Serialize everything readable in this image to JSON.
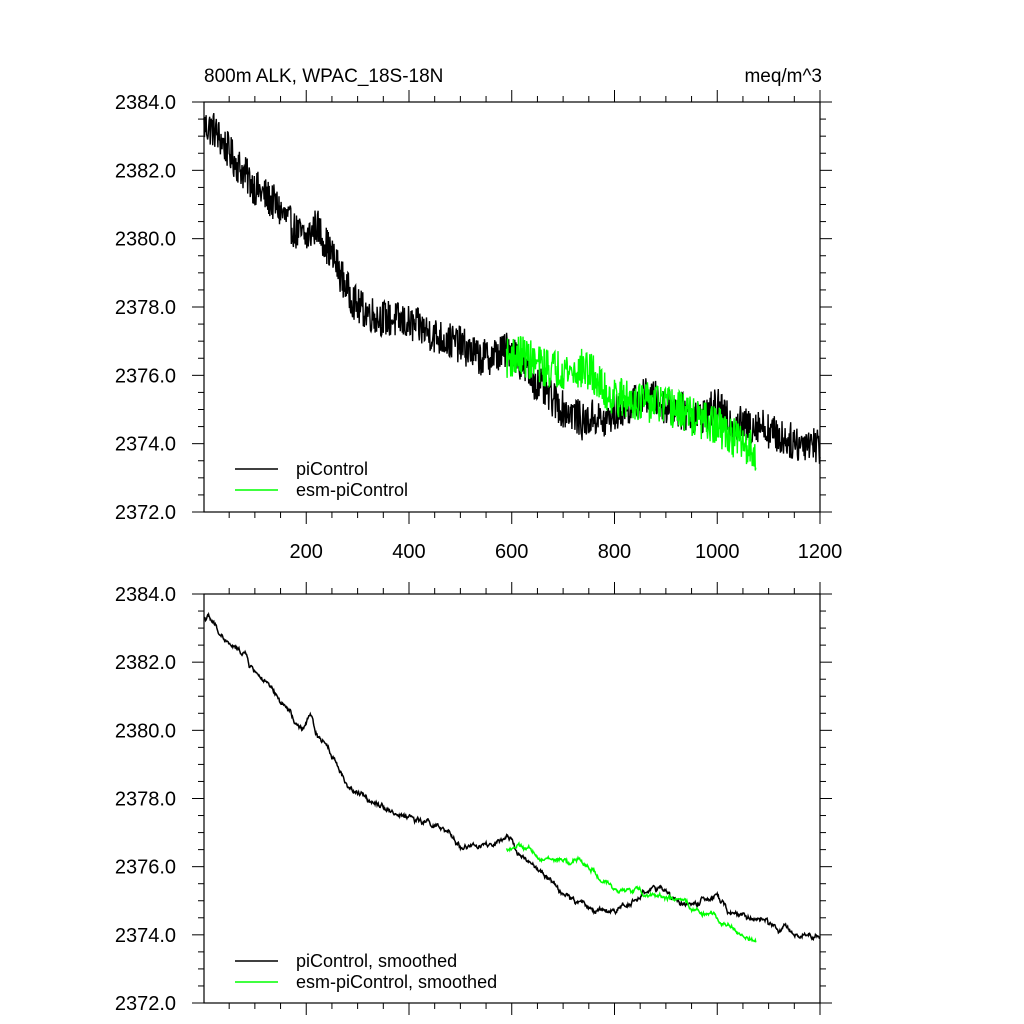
{
  "chart_data": [
    {
      "type": "line",
      "title": "800m ALK, WPAC_18S-18N",
      "units": "meq/m^3",
      "xlabel": "",
      "ylabel": "",
      "xlim": [
        1,
        1200
      ],
      "ylim": [
        2372.0,
        2384.0
      ],
      "x_ticks": [
        200,
        400,
        600,
        800,
        1000,
        1200
      ],
      "x_tick_labels": [
        "200",
        "400",
        "600",
        "800",
        "1000",
        "1200"
      ],
      "y_ticks": [
        2372.0,
        2374.0,
        2376.0,
        2378.0,
        2380.0,
        2382.0,
        2384.0
      ],
      "y_tick_labels": [
        "2372.0",
        "2374.0",
        "2376.0",
        "2378.0",
        "2380.0",
        "2382.0",
        "2384.0"
      ],
      "grid": false,
      "legend_position": "bottom-left",
      "series": [
        {
          "name": "piControl",
          "color": "#000000",
          "noise": 0.55,
          "x": [
            1,
            20,
            60,
            100,
            140,
            180,
            200,
            220,
            240,
            260,
            280,
            300,
            340,
            380,
            420,
            460,
            500,
            540,
            570,
            600,
            620,
            640,
            660,
            680,
            700,
            720,
            740,
            760,
            780,
            800,
            820,
            840,
            860,
            880,
            900,
            920,
            940,
            960,
            980,
            1000,
            1020,
            1040,
            1060,
            1080,
            1100,
            1120,
            1140,
            1160,
            1180,
            1200
          ],
          "values": [
            2383.3,
            2383.2,
            2382.3,
            2381.5,
            2381.0,
            2380.2,
            2380.0,
            2380.4,
            2379.8,
            2379.2,
            2378.5,
            2378.0,
            2377.7,
            2377.6,
            2377.4,
            2377.1,
            2376.9,
            2376.5,
            2376.6,
            2376.8,
            2376.3,
            2375.9,
            2375.6,
            2375.3,
            2375.0,
            2374.9,
            2374.6,
            2374.8,
            2374.6,
            2374.9,
            2375.0,
            2375.2,
            2375.4,
            2375.3,
            2375.1,
            2375.0,
            2374.9,
            2374.8,
            2374.9,
            2375.1,
            2374.7,
            2374.6,
            2374.5,
            2374.6,
            2374.4,
            2374.2,
            2374.1,
            2374.0,
            2374.1,
            2373.9
          ]
        },
        {
          "name": "esm-piControl",
          "color": "#00ff00",
          "noise": 0.6,
          "x": [
            590,
            620,
            650,
            680,
            700,
            720,
            740,
            760,
            780,
            800,
            820,
            840,
            860,
            880,
            900,
            920,
            940,
            960,
            980,
            1000,
            1020,
            1040,
            1060,
            1075
          ],
          "values": [
            2376.5,
            2376.6,
            2376.3,
            2376.2,
            2376.2,
            2376.1,
            2376.2,
            2376.0,
            2375.5,
            2375.4,
            2375.3,
            2375.3,
            2375.2,
            2375.2,
            2375.1,
            2375.0,
            2374.9,
            2374.7,
            2374.6,
            2374.5,
            2374.3,
            2374.1,
            2373.9,
            2373.8
          ]
        }
      ]
    },
    {
      "type": "line",
      "title": "",
      "units": "",
      "xlabel": "",
      "ylabel": "",
      "xlim": [
        1,
        1200
      ],
      "ylim": [
        2372.0,
        2384.0
      ],
      "x_ticks": [
        200,
        400,
        600,
        800,
        1000,
        1200
      ],
      "y_ticks": [
        2372.0,
        2374.0,
        2376.0,
        2378.0,
        2380.0,
        2382.0,
        2384.0
      ],
      "y_tick_labels": [
        "2372.0",
        "2374.0",
        "2376.0",
        "2378.0",
        "2380.0",
        "2382.0",
        "2384.0"
      ],
      "grid": false,
      "legend_position": "bottom-left",
      "series": [
        {
          "name": "piControl, smoothed",
          "color": "#000000",
          "noise": 0.12,
          "x": [
            1,
            10,
            30,
            50,
            70,
            80,
            90,
            110,
            130,
            150,
            170,
            180,
            190,
            200,
            210,
            220,
            240,
            260,
            280,
            300,
            320,
            340,
            360,
            380,
            400,
            420,
            440,
            460,
            480,
            500,
            520,
            540,
            560,
            580,
            600,
            620,
            640,
            660,
            680,
            700,
            720,
            740,
            760,
            780,
            790,
            800,
            820,
            840,
            860,
            880,
            900,
            920,
            940,
            960,
            980,
            1000,
            1020,
            1040,
            1060,
            1080,
            1100,
            1120,
            1140,
            1160,
            1180,
            1200
          ],
          "values": [
            2383.3,
            2383.3,
            2382.9,
            2382.5,
            2382.3,
            2382.3,
            2381.9,
            2381.6,
            2381.2,
            2380.8,
            2380.5,
            2380.1,
            2380.0,
            2380.2,
            2380.4,
            2379.9,
            2379.6,
            2379.0,
            2378.4,
            2378.1,
            2378.0,
            2377.9,
            2377.7,
            2377.5,
            2377.5,
            2377.3,
            2377.3,
            2377.1,
            2376.9,
            2376.6,
            2376.6,
            2376.6,
            2376.6,
            2376.7,
            2376.8,
            2376.3,
            2376.0,
            2375.8,
            2375.5,
            2375.2,
            2375.0,
            2374.9,
            2374.7,
            2374.8,
            2374.7,
            2374.7,
            2374.9,
            2375.0,
            2375.3,
            2375.4,
            2375.2,
            2375.0,
            2374.9,
            2374.9,
            2375.0,
            2375.1,
            2374.7,
            2374.6,
            2374.5,
            2374.5,
            2374.3,
            2374.2,
            2374.1,
            2374.0,
            2374.1,
            2373.9
          ]
        },
        {
          "name": "esm-piControl, smoothed",
          "color": "#00ff00",
          "noise": 0.1,
          "x": [
            590,
            610,
            630,
            650,
            670,
            690,
            710,
            730,
            750,
            760,
            770,
            780,
            800,
            820,
            840,
            860,
            880,
            900,
            920,
            940,
            960,
            980,
            1000,
            1020,
            1040,
            1060,
            1075
          ],
          "values": [
            2376.5,
            2376.6,
            2376.5,
            2376.3,
            2376.2,
            2376.2,
            2376.1,
            2376.2,
            2376.0,
            2375.9,
            2375.6,
            2375.5,
            2375.4,
            2375.3,
            2375.3,
            2375.2,
            2375.2,
            2375.1,
            2375.0,
            2374.9,
            2374.7,
            2374.6,
            2374.5,
            2374.3,
            2374.1,
            2373.9,
            2373.8
          ]
        }
      ]
    }
  ]
}
